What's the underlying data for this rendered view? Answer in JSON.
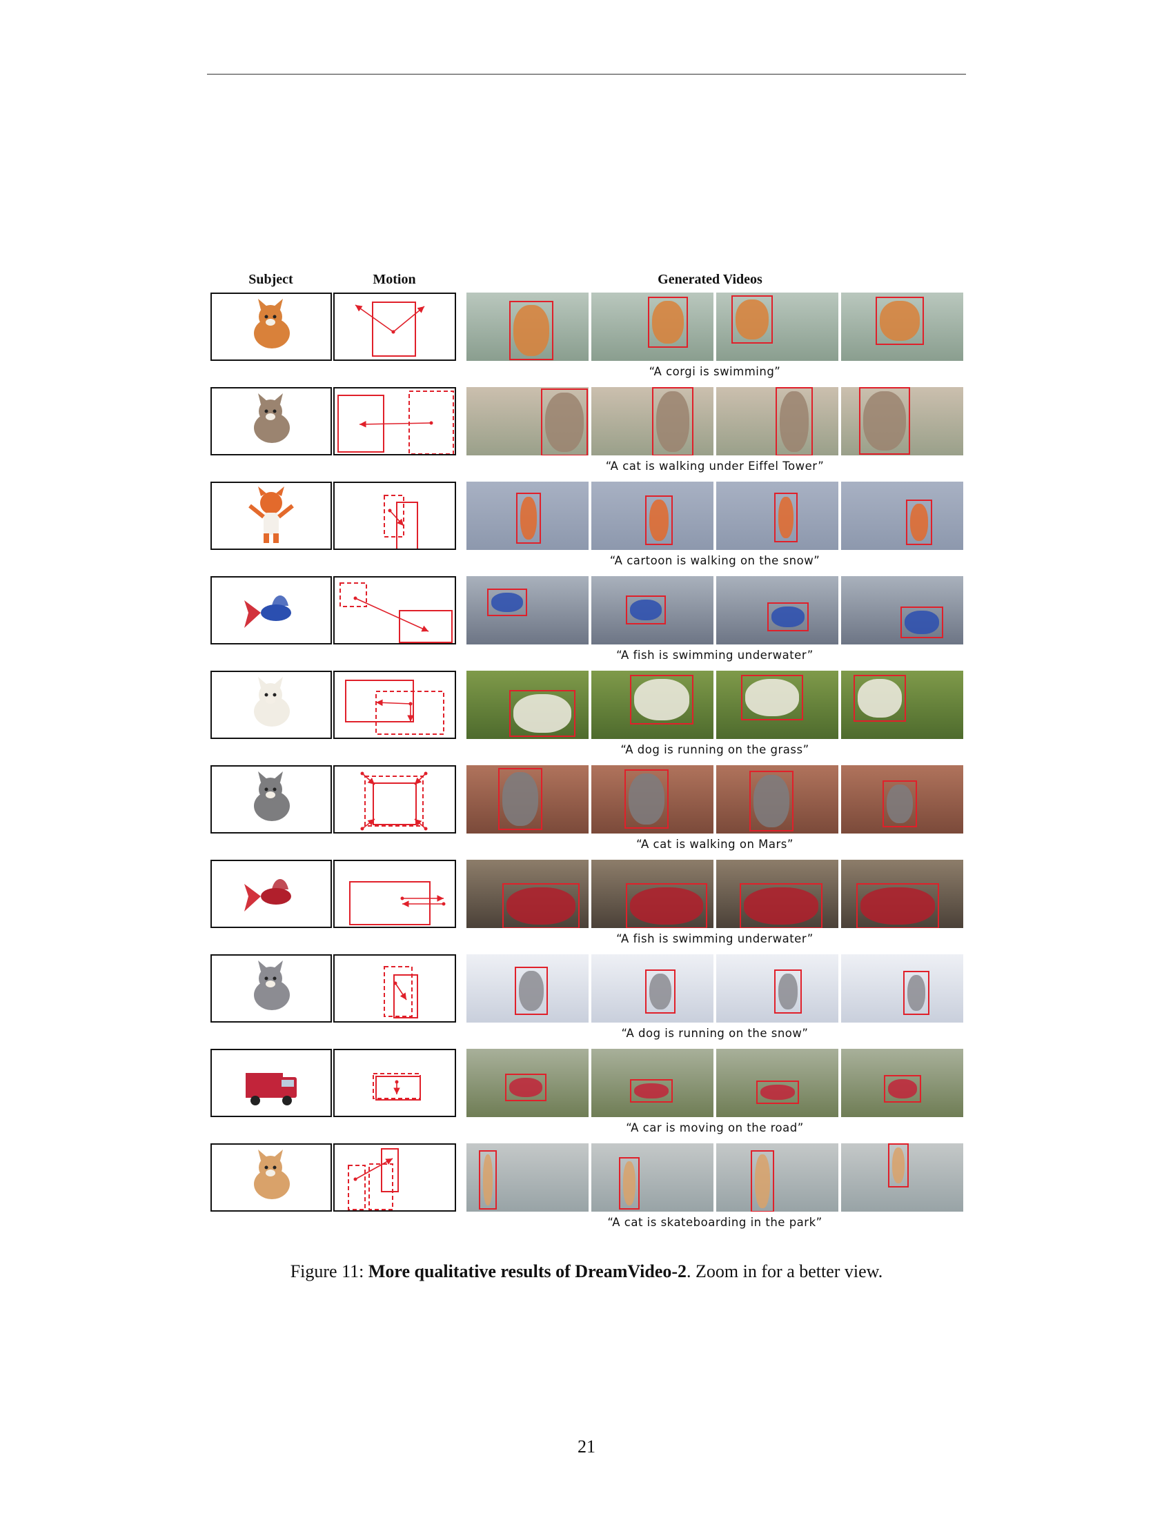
{
  "headers": {
    "subject": "Subject",
    "motion": "Motion",
    "videos": "Generated Videos"
  },
  "rows": [
    {
      "subject": "corgi",
      "bg": "water",
      "caption": "“A corgi is swimming”",
      "colors": {
        "bg1": "#8a9e8f",
        "bg2": "#b9c7bd",
        "subj": "#d9813a"
      }
    },
    {
      "subject": "cat",
      "bg": "eiffel",
      "caption": "“A cat is walking under Eiffel Tower”",
      "colors": {
        "bg1": "#9aa08a",
        "bg2": "#cbbfae",
        "subj": "#9b8470"
      }
    },
    {
      "subject": "cartoon",
      "bg": "snow",
      "caption": "“A cartoon is walking on the snow”",
      "colors": {
        "bg1": "#8d98ad",
        "bg2": "#a8b1c3",
        "subj": "#e36a2c"
      }
    },
    {
      "subject": "fish",
      "bg": "underwater",
      "caption": "“A fish is swimming underwater”",
      "colors": {
        "bg1": "#6d7585",
        "bg2": "#a9b1bc",
        "subj": "#2b4fb0"
      }
    },
    {
      "subject": "dog",
      "bg": "grass",
      "caption": "“A dog is running on the grass”",
      "colors": {
        "bg1": "#4e6b2d",
        "bg2": "#7f9a4a",
        "subj": "#f1ede4"
      }
    },
    {
      "subject": "cat",
      "bg": "mars",
      "caption": "“A cat is walking on Mars”",
      "colors": {
        "bg1": "#7b4a3a",
        "bg2": "#b0735c",
        "subj": "#7d7d7f"
      }
    },
    {
      "subject": "fish",
      "bg": "underwater",
      "caption": "“A fish is swimming underwater”",
      "colors": {
        "bg1": "#4b4138",
        "bg2": "#8d7d6a",
        "subj": "#b11f2c"
      }
    },
    {
      "subject": "dog",
      "bg": "snow",
      "caption": "“A dog is running on the snow”",
      "colors": {
        "bg1": "#c9cfdc",
        "bg2": "#eef0f5",
        "subj": "#8c8c92"
      }
    },
    {
      "subject": "car",
      "bg": "road",
      "caption": "“A car is moving on the road”",
      "colors": {
        "bg1": "#6f7d55",
        "bg2": "#a8b09a",
        "subj": "#c2243a"
      }
    },
    {
      "subject": "cat",
      "bg": "park",
      "caption": "“A cat is skateboarding in the park”",
      "colors": {
        "bg1": "#98a3a6",
        "bg2": "#c4c8c8",
        "subj": "#d9a26a"
      }
    }
  ],
  "figure_caption": {
    "label": "Figure 11: ",
    "bold": "More qualitative results of DreamVideo-2",
    "rest": ". Zoom in for a better view."
  },
  "page_number": "21",
  "accent_color": "#e0202a"
}
